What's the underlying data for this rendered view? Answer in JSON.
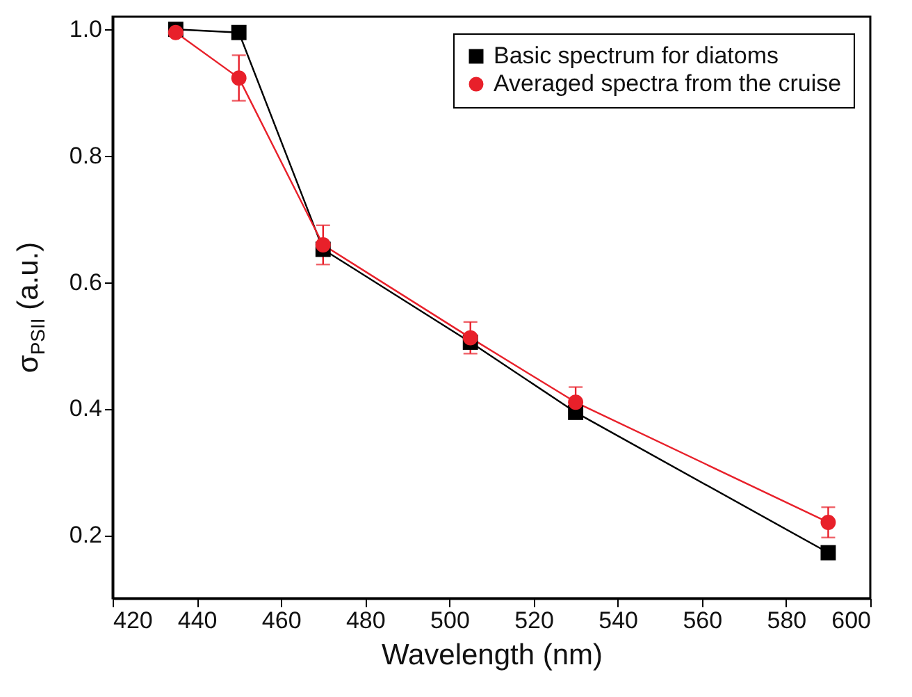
{
  "chart_data": {
    "type": "line",
    "xlabel": "Wavelength (nm)",
    "ylabel": "σ$_{PSII}$ (a.u.)",
    "x": [
      435,
      450,
      470,
      505,
      530,
      590
    ],
    "series": [
      {
        "name": "Basic spectrum for diatoms",
        "color": "#000000",
        "marker": "square",
        "values": [
          1.0,
          0.995,
          0.652,
          0.505,
          0.394,
          0.172
        ]
      },
      {
        "name": "Averaged spectra from the cruise",
        "color": "#e8202a",
        "marker": "circle",
        "values": [
          0.995,
          0.923,
          0.659,
          0.512,
          0.41,
          0.22
        ],
        "errors": [
          null,
          0.036,
          0.031,
          0.025,
          0.024,
          0.024
        ]
      }
    ],
    "xlim": [
      420,
      600
    ],
    "xticks": [
      420,
      440,
      460,
      480,
      500,
      520,
      540,
      560,
      580,
      600
    ],
    "ylim": [
      0.1,
      1.02
    ],
    "yticks": [
      0.2,
      0.4,
      0.6,
      0.8,
      {
        "value": 1,
        "label": "1.0"
      }
    ],
    "grid": false,
    "legend": "top right",
    "line_style": "solid"
  }
}
